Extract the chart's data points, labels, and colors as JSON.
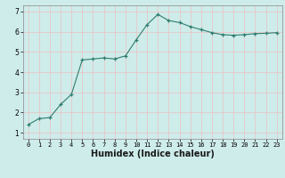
{
  "x": [
    0,
    1,
    2,
    3,
    4,
    5,
    6,
    7,
    8,
    9,
    10,
    11,
    12,
    13,
    14,
    15,
    16,
    17,
    18,
    19,
    20,
    21,
    22,
    23
  ],
  "y": [
    1.4,
    1.7,
    1.75,
    2.4,
    2.9,
    4.6,
    4.65,
    4.7,
    4.65,
    4.8,
    5.6,
    6.35,
    6.85,
    6.55,
    6.45,
    6.25,
    6.1,
    5.95,
    5.85,
    5.82,
    5.85,
    5.9,
    5.92,
    5.95
  ],
  "xlabel": "Humidex (Indice chaleur)",
  "line_color": "#2e7d6e",
  "bg_color": "#ceecea",
  "grid_color": "#e8c8c8",
  "xlim": [
    -0.5,
    23.5
  ],
  "ylim": [
    0.7,
    7.3
  ],
  "xticks": [
    0,
    1,
    2,
    3,
    4,
    5,
    6,
    7,
    8,
    9,
    10,
    11,
    12,
    13,
    14,
    15,
    16,
    17,
    18,
    19,
    20,
    21,
    22,
    23
  ],
  "yticks": [
    1,
    2,
    3,
    4,
    5,
    6,
    7
  ],
  "tick_fontsize": 5.5,
  "xlabel_fontsize": 7.0
}
